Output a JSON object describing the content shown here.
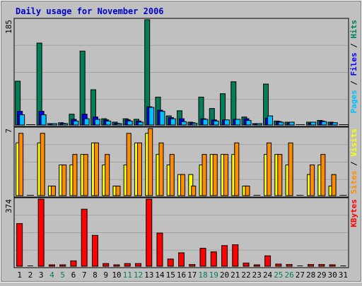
{
  "colors": {
    "background": "#c0c0c0",
    "plot_bg": "#c0c0c0",
    "grid": "#a4a4a4",
    "title": "#0000cc",
    "hits": "#007e5a",
    "files": "#0000ff",
    "pages": "#00c0ff",
    "visits": "#ffff00",
    "sites": "#ff8c00",
    "kbytes": "#ff0000",
    "weekday_label": "#000000",
    "weekend_label": "#007e5a"
  },
  "chart_data": {
    "type": "bar",
    "title": "Daily usage for November 2006",
    "days": [
      "1",
      "2",
      "3",
      "4",
      "5",
      "6",
      "7",
      "8",
      "9",
      "10",
      "11",
      "12",
      "13",
      "14",
      "15",
      "16",
      "17",
      "18",
      "19",
      "20",
      "21",
      "22",
      "23",
      "24",
      "25",
      "26",
      "27",
      "28",
      "29",
      "30",
      "31"
    ],
    "weekend_days": [
      "4",
      "5",
      "11",
      "12",
      "18",
      "19",
      "25",
      "26"
    ],
    "panels": [
      {
        "name": "hits-files-pages",
        "ylabel_parts": [
          "Pages",
          "Files",
          "Hits"
        ],
        "ylabel_colors": [
          "pages",
          "files",
          "hits"
        ],
        "ymax_label": "185",
        "ymax": 185,
        "series": [
          {
            "name": "Hits",
            "color_key": "hits",
            "values": [
              77,
              0,
              144,
              2,
              4,
              19,
              130,
              62,
              11,
              5,
              11,
              10,
              185,
              49,
              16,
              25,
              5,
              49,
              29,
              55,
              76,
              14,
              2,
              72,
              7,
              5,
              0,
              5,
              8,
              5,
              0
            ]
          },
          {
            "name": "Files",
            "color_key": "files",
            "values": [
              24,
              0,
              24,
              1,
              3,
              10,
              19,
              14,
              9,
              3,
              9,
              7,
              32,
              26,
              13,
              11,
              4,
              11,
              9,
              9,
              10,
              11,
              1,
              12,
              6,
              3,
              0,
              3,
              7,
              4,
              0
            ]
          },
          {
            "name": "Pages",
            "color_key": "pages",
            "values": [
              18,
              0,
              18,
              1,
              2,
              7,
              11,
              10,
              7,
              2,
              7,
              5,
              31,
              24,
              11,
              6,
              3,
              10,
              7,
              9,
              10,
              8,
              1,
              16,
              5,
              5,
              0,
              5,
              6,
              4,
              0
            ]
          }
        ]
      },
      {
        "name": "visits-sites",
        "ylabel_parts": [
          "Sites",
          "Visits"
        ],
        "ylabel_colors": [
          "sites",
          "visits"
        ],
        "ymax_label": "7",
        "ymax": 7,
        "series": [
          {
            "name": "Visits",
            "color_key": "visits",
            "values": [
              5.5,
              0,
              5.5,
              1,
              3.2,
              3.2,
              4.3,
              5.5,
              3.2,
              1,
              3.2,
              5.5,
              6.5,
              4.3,
              3.2,
              2.2,
              2.2,
              3.2,
              4.3,
              4.3,
              4.3,
              1,
              0,
              4.3,
              4.3,
              3.2,
              0,
              2.2,
              3.2,
              1,
              0
            ]
          },
          {
            "name": "Sites",
            "color_key": "sites",
            "values": [
              6.5,
              0,
              6.5,
              1,
              3.2,
              4.3,
              4.3,
              5.5,
              4.3,
              1,
              6.5,
              5.5,
              7,
              5.5,
              4.3,
              2.2,
              1,
              4.3,
              4.3,
              4.3,
              5.5,
              1,
              0,
              5.5,
              4.3,
              5.5,
              0,
              3.2,
              4.3,
              2.2,
              0
            ]
          }
        ]
      },
      {
        "name": "kbytes",
        "ylabel_parts": [
          "KBytes"
        ],
        "ylabel_colors": [
          "kbytes"
        ],
        "ymax_label": "374",
        "ymax": 374,
        "series": [
          {
            "name": "KBytes",
            "color_key": "kbytes",
            "values": [
              238,
              0,
              374,
              3,
              3,
              30,
              318,
              172,
              15,
              5,
              15,
              15,
              374,
              185,
              40,
              75,
              10,
              100,
              80,
              115,
              120,
              18,
              3,
              58,
              12,
              10,
              0,
              10,
              10,
              8,
              0
            ]
          }
        ]
      }
    ]
  }
}
